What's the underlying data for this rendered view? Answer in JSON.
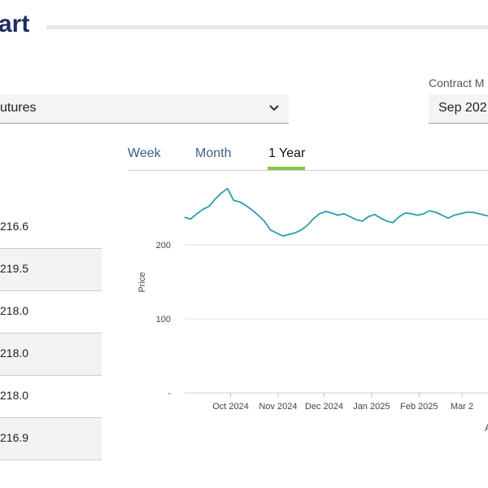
{
  "title": "art",
  "product_select": {
    "value": "utures"
  },
  "contract_month": {
    "label": "Contract M",
    "value": "Sep 202"
  },
  "tabs": [
    {
      "label": "Week",
      "active": false
    },
    {
      "label": "Month",
      "active": false
    },
    {
      "label": "1 Year",
      "active": true
    }
  ],
  "price_rows": [
    "216.6",
    "219.5",
    "218.0",
    "218.0",
    "218.0",
    "216.9"
  ],
  "colors": {
    "accent": "#8bc53f",
    "line": "#2a9db0",
    "title": "#1d2c5e",
    "tab": "#3d5f87"
  },
  "chart_data": {
    "type": "line",
    "ylabel": "Price",
    "xlabel": "A",
    "y_ticks": [
      "200",
      "100",
      "-"
    ],
    "ylim": [
      0,
      300
    ],
    "x_ticks": [
      "Oct 2024",
      "Nov 2024",
      "Dec 2024",
      "Jan 2025",
      "Feb 2025",
      "Mar 2"
    ],
    "grid": true,
    "series": [
      {
        "x": [
          "2024-09-01",
          "2024-09-05",
          "2024-09-09",
          "2024-09-13",
          "2024-09-17",
          "2024-09-21",
          "2024-09-25",
          "2024-09-29",
          "2024-10-03",
          "2024-10-07",
          "2024-10-11",
          "2024-10-15",
          "2024-10-19",
          "2024-10-23",
          "2024-10-27",
          "2024-10-31",
          "2024-11-04",
          "2024-11-08",
          "2024-11-12",
          "2024-11-16",
          "2024-11-20",
          "2024-11-24",
          "2024-11-28",
          "2024-12-02",
          "2024-12-06",
          "2024-12-10",
          "2024-12-14",
          "2024-12-18",
          "2024-12-22",
          "2024-12-26",
          "2024-12-30",
          "2025-01-03",
          "2025-01-07",
          "2025-01-11",
          "2025-01-15",
          "2025-01-19",
          "2025-01-23",
          "2025-01-27",
          "2025-01-31",
          "2025-02-04",
          "2025-02-08",
          "2025-02-12",
          "2025-02-16",
          "2025-02-20",
          "2025-02-24",
          "2025-02-28",
          "2025-03-04",
          "2025-03-08",
          "2025-03-12",
          "2025-03-16",
          "2025-03-20"
        ],
        "values": [
          237,
          235,
          242,
          248,
          252,
          262,
          270,
          276,
          260,
          258,
          253,
          247,
          240,
          232,
          220,
          216,
          212,
          214,
          216,
          220,
          226,
          235,
          242,
          245,
          243,
          240,
          242,
          238,
          234,
          232,
          238,
          241,
          236,
          232,
          230,
          238,
          243,
          242,
          240,
          242,
          246,
          244,
          240,
          236,
          240,
          242,
          244,
          244,
          242,
          240,
          238
        ]
      }
    ]
  }
}
